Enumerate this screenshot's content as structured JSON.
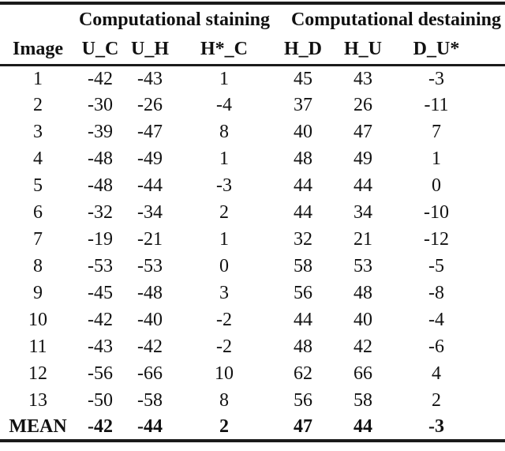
{
  "colors": {
    "text": "#111111",
    "rule": "#1b1b1b",
    "background": "#ffffff"
  },
  "table": {
    "group_headers": {
      "staining": "Computational staining",
      "destaining": "Computational destaining"
    },
    "columns": [
      "Image",
      "U_C",
      "U_H",
      "H*_C",
      "H_D",
      "H_U",
      "D_U*"
    ],
    "rows": [
      [
        "1",
        "-42",
        "-43",
        "1",
        "45",
        "43",
        "-3"
      ],
      [
        "2",
        "-30",
        "-26",
        "-4",
        "37",
        "26",
        "-11"
      ],
      [
        "3",
        "-39",
        "-47",
        "8",
        "40",
        "47",
        "7"
      ],
      [
        "4",
        "-48",
        "-49",
        "1",
        "48",
        "49",
        "1"
      ],
      [
        "5",
        "-48",
        "-44",
        "-3",
        "44",
        "44",
        "0"
      ],
      [
        "6",
        "-32",
        "-34",
        "2",
        "44",
        "34",
        "-10"
      ],
      [
        "7",
        "-19",
        "-21",
        "1",
        "32",
        "21",
        "-12"
      ],
      [
        "8",
        "-53",
        "-53",
        "0",
        "58",
        "53",
        "-5"
      ],
      [
        "9",
        "-45",
        "-48",
        "3",
        "56",
        "48",
        "-8"
      ],
      [
        "10",
        "-42",
        "-40",
        "-2",
        "44",
        "40",
        "-4"
      ],
      [
        "11",
        "-43",
        "-42",
        "-2",
        "48",
        "42",
        "-6"
      ],
      [
        "12",
        "-56",
        "-66",
        "10",
        "62",
        "66",
        "4"
      ],
      [
        "13",
        "-50",
        "-58",
        "8",
        "56",
        "58",
        "2"
      ]
    ],
    "mean_row": [
      "MEAN",
      "-42",
      "-44",
      "2",
      "47",
      "44",
      "-3"
    ]
  }
}
